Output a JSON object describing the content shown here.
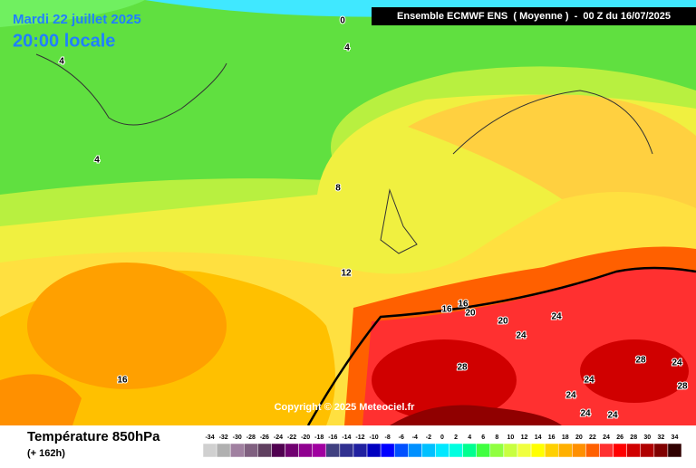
{
  "header": {
    "date": "Mardi 22 juillet 2025",
    "time": "20:00 locale",
    "model": "Ensemble ECMWF ENS  ( Moyenne )  -  00 Z du 16/07/2025"
  },
  "map": {
    "contour_labels": [
      0,
      4,
      4,
      4,
      8,
      12,
      16,
      16,
      16,
      20,
      20,
      24,
      24,
      28,
      28,
      24,
      28,
      24,
      24,
      24,
      24
    ],
    "copyright": "Copyright © 2025 Meteociel.fr"
  },
  "footer": {
    "variable": "Température 850hPa",
    "lead": "(+ 162h)"
  },
  "legend": {
    "values": [
      -34,
      -32,
      -30,
      -28,
      -26,
      -24,
      -22,
      -20,
      -18,
      -16,
      -14,
      -12,
      -10,
      -8,
      -6,
      -4,
      -2,
      0,
      2,
      4,
      6,
      8,
      10,
      12,
      14,
      16,
      18,
      20,
      22,
      24,
      26,
      28,
      30,
      32,
      34
    ],
    "colors": [
      "#d0d0d0",
      "#b0b0b0",
      "#a080a0",
      "#806080",
      "#604060",
      "#500050",
      "#700070",
      "#900090",
      "#a000a0",
      "#404080",
      "#303090",
      "#2020a0",
      "#0000c0",
      "#0000ff",
      "#0050ff",
      "#0090ff",
      "#00c0ff",
      "#00e8ff",
      "#00ffe0",
      "#00ff90",
      "#40ff40",
      "#90ff40",
      "#c8ff40",
      "#f0ff40",
      "#ffff00",
      "#ffd000",
      "#ffb000",
      "#ff9000",
      "#ff6000",
      "#ff3030",
      "#ff0000",
      "#d00000",
      "#b00000",
      "#800000",
      "#300000"
    ]
  }
}
